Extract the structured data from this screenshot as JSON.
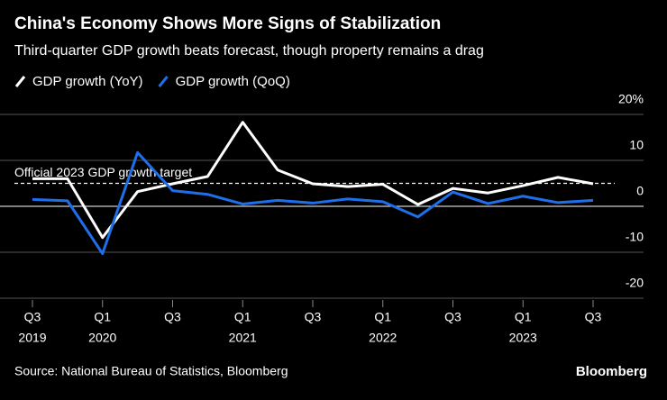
{
  "chart_data": {
    "type": "line",
    "title": "China's Economy Shows More Signs of Stabilization",
    "subtitle": "Third-quarter GDP growth beats forecast, though property remains a drag",
    "source": "Source: National Bureau of Statistics, Bloomberg",
    "brand": "Bloomberg",
    "categories": [
      "Q3",
      null,
      "Q1",
      null,
      "Q3",
      null,
      "Q1",
      null,
      "Q3",
      null,
      "Q1",
      null,
      "Q3",
      null,
      "Q1",
      null,
      "Q3"
    ],
    "category_years": [
      "2019",
      null,
      "2020",
      null,
      null,
      null,
      "2021",
      null,
      null,
      null,
      "2022",
      null,
      null,
      null,
      "2023",
      null,
      null
    ],
    "series": [
      {
        "name": "GDP growth (YoY)",
        "color": "#ffffff",
        "values": [
          6.0,
          6.0,
          -6.8,
          3.2,
          4.9,
          6.5,
          18.3,
          7.9,
          4.9,
          4.3,
          4.8,
          0.4,
          3.9,
          2.9,
          4.5,
          6.3,
          4.9
        ]
      },
      {
        "name": "GDP growth (QoQ)",
        "color": "#1f6fea",
        "values": [
          1.5,
          1.2,
          -10.3,
          11.7,
          3.4,
          2.6,
          0.5,
          1.3,
          0.7,
          1.6,
          1.0,
          -2.3,
          3.1,
          0.6,
          2.2,
          0.8,
          1.3
        ]
      }
    ],
    "annotation": {
      "text": "Official 2023 GDP growth target",
      "value": 5
    },
    "ylim": [
      -20,
      20
    ],
    "yticks": [
      {
        "value": 20,
        "label": "20%"
      },
      10,
      0,
      -10,
      -20
    ],
    "grid": true
  }
}
